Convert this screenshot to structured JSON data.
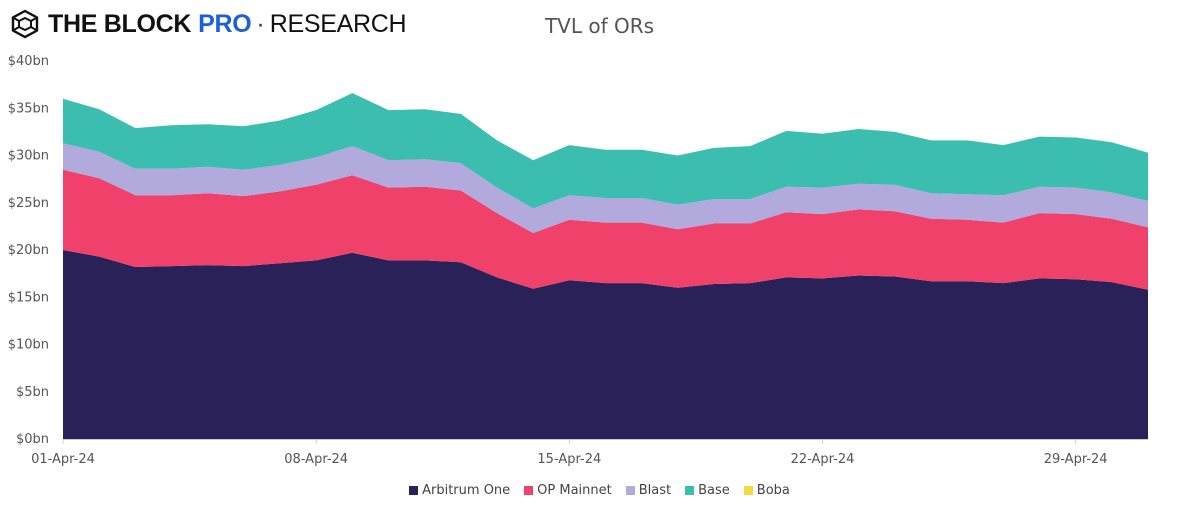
{
  "brand": {
    "part1": "THE BLOCK",
    "part2": "PRO",
    "separator": "·",
    "part3": "RESEARCH",
    "icon": "cube-logo-icon"
  },
  "chart_data": {
    "type": "area",
    "stacked": true,
    "title": "TVL of ORs",
    "xlabel": "",
    "ylabel": "",
    "ylim": [
      0,
      40
    ],
    "y_ticks": [
      0,
      5,
      10,
      15,
      20,
      25,
      30,
      35,
      40
    ],
    "y_tick_labels": [
      "$0bn",
      "$5bn",
      "$10bn",
      "$15bn",
      "$20bn",
      "$25bn",
      "$30bn",
      "$35bn",
      "$40bn"
    ],
    "x_tick_labels": [
      "01-Apr-24",
      "08-Apr-24",
      "15-Apr-24",
      "22-Apr-24",
      "29-Apr-24"
    ],
    "x_tick_indices": [
      0,
      7,
      14,
      21,
      28
    ],
    "x": [
      "01-Apr-24",
      "02-Apr-24",
      "03-Apr-24",
      "04-Apr-24",
      "05-Apr-24",
      "06-Apr-24",
      "07-Apr-24",
      "08-Apr-24",
      "09-Apr-24",
      "10-Apr-24",
      "11-Apr-24",
      "12-Apr-24",
      "13-Apr-24",
      "14-Apr-24",
      "15-Apr-24",
      "16-Apr-24",
      "17-Apr-24",
      "18-Apr-24",
      "19-Apr-24",
      "20-Apr-24",
      "21-Apr-24",
      "22-Apr-24",
      "23-Apr-24",
      "24-Apr-24",
      "25-Apr-24",
      "26-Apr-24",
      "27-Apr-24",
      "28-Apr-24",
      "29-Apr-24",
      "30-Apr-24",
      "01-May-24"
    ],
    "grid": false,
    "legend_position": "bottom",
    "series": [
      {
        "name": "Arbitrum One",
        "color": "#2a2158",
        "values": [
          20.0,
          19.3,
          18.2,
          18.3,
          18.4,
          18.3,
          18.6,
          18.9,
          19.7,
          18.9,
          18.9,
          18.7,
          17.1,
          15.9,
          16.8,
          16.5,
          16.5,
          16.0,
          16.4,
          16.5,
          17.1,
          17.0,
          17.3,
          17.2,
          16.7,
          16.7,
          16.5,
          17.0,
          16.9,
          16.6,
          15.8
        ]
      },
      {
        "name": "OP Mainnet",
        "color": "#ef4169",
        "values": [
          8.5,
          8.3,
          7.6,
          7.5,
          7.6,
          7.4,
          7.6,
          8.0,
          8.2,
          7.7,
          7.8,
          7.6,
          6.8,
          5.9,
          6.4,
          6.4,
          6.4,
          6.2,
          6.4,
          6.3,
          6.9,
          6.8,
          7.0,
          6.9,
          6.6,
          6.5,
          6.4,
          6.9,
          6.9,
          6.7,
          6.6
        ]
      },
      {
        "name": "Blast",
        "color": "#b2a9dc",
        "values": [
          2.8,
          2.8,
          2.8,
          2.8,
          2.8,
          2.8,
          2.8,
          2.9,
          3.1,
          2.9,
          2.9,
          2.9,
          2.7,
          2.6,
          2.6,
          2.6,
          2.6,
          2.6,
          2.6,
          2.6,
          2.7,
          2.8,
          2.7,
          2.8,
          2.7,
          2.7,
          2.9,
          2.8,
          2.8,
          2.8,
          2.8
        ]
      },
      {
        "name": "Base",
        "color": "#3bbdb0",
        "values": [
          4.7,
          4.5,
          4.3,
          4.6,
          4.5,
          4.6,
          4.7,
          5.0,
          5.6,
          5.3,
          5.3,
          5.2,
          5.0,
          5.1,
          5.3,
          5.1,
          5.1,
          5.2,
          5.4,
          5.6,
          5.9,
          5.7,
          5.8,
          5.6,
          5.6,
          5.7,
          5.3,
          5.3,
          5.3,
          5.3,
          5.1
        ]
      },
      {
        "name": "Boba",
        "color": "#f7d93e",
        "values": [
          0.0,
          0.0,
          0.0,
          0.0,
          0.0,
          0.0,
          0.0,
          0.0,
          0.0,
          0.0,
          0.0,
          0.0,
          0.0,
          0.0,
          0.0,
          0.0,
          0.0,
          0.0,
          0.0,
          0.0,
          0.0,
          0.0,
          0.0,
          0.0,
          0.0,
          0.0,
          0.0,
          0.0,
          0.0,
          0.0,
          0.0
        ]
      }
    ]
  }
}
